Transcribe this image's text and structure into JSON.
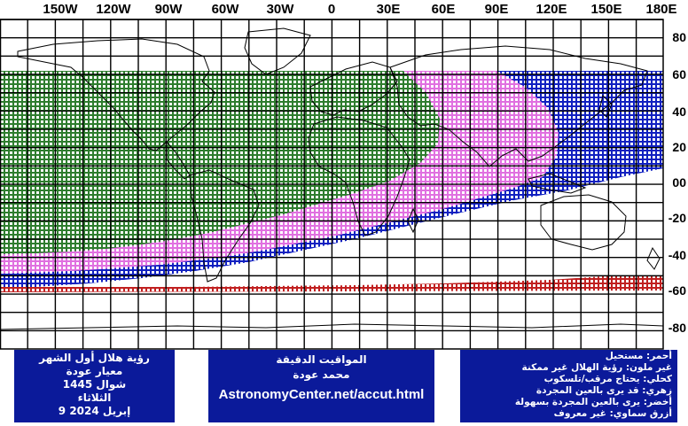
{
  "map": {
    "lon_labels": [
      "150W",
      "120W",
      "90W",
      "60W",
      "30W",
      "0",
      "30E",
      "60E",
      "90E",
      "120E",
      "150E",
      "180E"
    ],
    "lat_labels": [
      "80",
      "60",
      "40",
      "20",
      "00",
      "-20",
      "-40",
      "-60",
      "-80"
    ],
    "colors": {
      "green": "#2e7d2e",
      "pink": "#e070e0",
      "blue": "#1020c0",
      "red": "#c02020",
      "grid": "#000000",
      "coast": "#000000"
    },
    "zones": [
      "green",
      "pink",
      "blue",
      "red"
    ]
  },
  "info_left": {
    "title": "رؤية هلال أول الشهر",
    "criterion": "معيار عودة",
    "month": "شوال 1445",
    "day": "الثلاثاء",
    "date": "9 إبريل 2024"
  },
  "info_mid": {
    "heading": "المواقيت الدقيقة",
    "author": "محمد عودة",
    "url": "AstronomyCenter.net/accut.html"
  },
  "legend": {
    "red": "أحمر: مستحيل",
    "none": "غير ملون: رؤية الهلال غير ممكنة",
    "blue": "كحلي: يحتاج مرقب/تلسكوب",
    "pink": "زهري: قد يرى بالعين المجردة",
    "green": "أخضر: يرى بالعين المجردة بسهولة",
    "sky": "أزرق سماوي: غير معروف"
  }
}
